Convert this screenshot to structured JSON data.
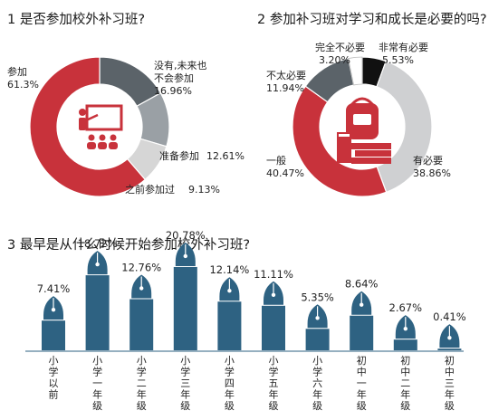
{
  "chart_data": [
    {
      "type": "pie",
      "title": "1 是否参加校外补习班?",
      "slices": [
        {
          "label": "参加",
          "value": 61.3,
          "display": "61.3%",
          "color": "#c8323b"
        },
        {
          "label": "没有,未来也不会参加",
          "value": 16.96,
          "display": "16.96%",
          "color": "#5b6369"
        },
        {
          "label": "准备参加",
          "value": 12.61,
          "display": "12.61%",
          "color": "#9aa0a5"
        },
        {
          "label": "之前参加过",
          "value": 9.13,
          "display": "9.13%",
          "color": "#d6d6d6"
        }
      ]
    },
    {
      "type": "pie",
      "title": "2 参加补习班对学习和成长是必要的吗?",
      "slices": [
        {
          "label": "非常有必要",
          "value": 5.53,
          "display": "5.53%",
          "color": "#111111"
        },
        {
          "label": "有必要",
          "value": 38.86,
          "display": "38.86%",
          "color": "#cfd0d2"
        },
        {
          "label": "一般",
          "value": 40.47,
          "display": "40.47%",
          "color": "#c8323b"
        },
        {
          "label": "不太必要",
          "value": 11.94,
          "display": "11.94%",
          "color": "#5b6369"
        },
        {
          "label": "完全不必要",
          "value": 3.2,
          "display": "3.20%",
          "color": "#ffffff"
        }
      ]
    },
    {
      "type": "bar",
      "title": "3 最早是从什么时候开始参加校外补习班?",
      "categories": [
        "小学以前",
        "小学一年级",
        "小学二年级",
        "小学三年级",
        "小学四年级",
        "小学五年级",
        "小学六年级",
        "初中一年级",
        "初中二年级",
        "初中三年级"
      ],
      "values": [
        7.41,
        18.72,
        12.76,
        20.78,
        12.14,
        11.11,
        5.35,
        8.64,
        2.67,
        0.41
      ],
      "value_labels": [
        "7.41%",
        "18.72%",
        "12.76%",
        "20.78%",
        "12.14%",
        "11.11%",
        "5.35%",
        "8.64%",
        "2.67%",
        "0.41%"
      ],
      "ylim": [
        0,
        21
      ],
      "color": "#2e6282"
    }
  ],
  "labels": {
    "c1_canjia": "参加",
    "c1_canjia_v": "61.3%",
    "c1_no_1": "没有,未来也",
    "c1_no_2": "不会参加",
    "c1_no_v": "16.96%",
    "c1_prep": "准备参加",
    "c1_prep_v": "12.61%",
    "c1_before": "之前参加过",
    "c1_before_v": "9.13%",
    "c2_wq": "完全不必要",
    "c2_wq_v": "3.20%",
    "c2_fc": "非常有必要",
    "c2_fc_v": "5.53%",
    "c2_bt": "不太必要",
    "c2_bt_v": "11.94%",
    "c2_yb": "一般",
    "c2_yb_v": "40.47%",
    "c2_yb2": "有必要",
    "c2_yb2_v": "38.86%"
  }
}
